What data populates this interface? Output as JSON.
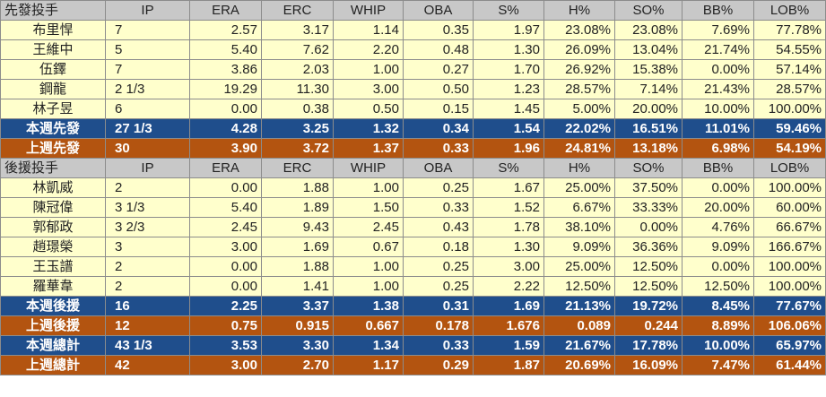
{
  "starters": {
    "header": [
      "先發投手",
      "IP",
      "ERA",
      "ERC",
      "WHIP",
      "OBA",
      "S%",
      "H%",
      "SO%",
      "BB%",
      "LOB%"
    ],
    "rows": [
      [
        "布里悍",
        "7",
        "2.57",
        "3.17",
        "1.14",
        "0.35",
        "1.97",
        "23.08%",
        "23.08%",
        "7.69%",
        "77.78%"
      ],
      [
        "王維中",
        "5",
        "5.40",
        "7.62",
        "2.20",
        "0.48",
        "1.30",
        "26.09%",
        "13.04%",
        "21.74%",
        "54.55%"
      ],
      [
        "伍鐸",
        "7",
        "3.86",
        "2.03",
        "1.00",
        "0.27",
        "1.70",
        "26.92%",
        "15.38%",
        "0.00%",
        "57.14%"
      ],
      [
        "鋼龍",
        "2 1/3",
        "19.29",
        "11.30",
        "3.00",
        "0.50",
        "1.23",
        "28.57%",
        "7.14%",
        "21.43%",
        "28.57%"
      ],
      [
        "林子昱",
        "6",
        "0.00",
        "0.38",
        "0.50",
        "0.15",
        "1.45",
        "5.00%",
        "20.00%",
        "10.00%",
        "100.00%"
      ]
    ],
    "this_week": [
      "本週先發",
      "27 1/3",
      "4.28",
      "3.25",
      "1.32",
      "0.34",
      "1.54",
      "22.02%",
      "16.51%",
      "11.01%",
      "59.46%"
    ],
    "last_week": [
      "上週先發",
      "30",
      "3.90",
      "3.72",
      "1.37",
      "0.33",
      "1.96",
      "24.81%",
      "13.18%",
      "6.98%",
      "54.19%"
    ]
  },
  "relievers": {
    "header": [
      "後援投手",
      "IP",
      "ERA",
      "ERC",
      "WHIP",
      "OBA",
      "S%",
      "H%",
      "SO%",
      "BB%",
      "LOB%"
    ],
    "rows": [
      [
        "林凱威",
        "2",
        "0.00",
        "1.88",
        "1.00",
        "0.25",
        "1.67",
        "25.00%",
        "37.50%",
        "0.00%",
        "100.00%"
      ],
      [
        "陳冠偉",
        "3 1/3",
        "5.40",
        "1.89",
        "1.50",
        "0.33",
        "1.52",
        "6.67%",
        "33.33%",
        "20.00%",
        "60.00%"
      ],
      [
        "郭郁政",
        "3 2/3",
        "2.45",
        "9.43",
        "2.45",
        "0.43",
        "1.78",
        "38.10%",
        "0.00%",
        "4.76%",
        "66.67%"
      ],
      [
        "趙璟榮",
        "3",
        "3.00",
        "1.69",
        "0.67",
        "0.18",
        "1.30",
        "9.09%",
        "36.36%",
        "9.09%",
        "166.67%"
      ],
      [
        "王玉譜",
        "2",
        "0.00",
        "1.88",
        "1.00",
        "0.25",
        "3.00",
        "25.00%",
        "12.50%",
        "0.00%",
        "100.00%"
      ],
      [
        "羅華韋",
        "2",
        "0.00",
        "1.41",
        "1.00",
        "0.25",
        "2.22",
        "12.50%",
        "12.50%",
        "12.50%",
        "100.00%"
      ]
    ],
    "this_week": [
      "本週後援",
      "16",
      "2.25",
      "3.37",
      "1.38",
      "0.31",
      "1.69",
      "21.13%",
      "19.72%",
      "8.45%",
      "77.67%"
    ],
    "last_week": [
      "上週後援",
      "12",
      "0.75",
      "0.915",
      "0.667",
      "0.178",
      "1.676",
      "0.089",
      "0.244",
      "8.89%",
      "106.06%"
    ]
  },
  "totals": {
    "this_week": [
      "本週總計",
      "43 1/3",
      "3.53",
      "3.30",
      "1.34",
      "0.33",
      "1.59",
      "21.67%",
      "17.78%",
      "10.00%",
      "65.97%"
    ],
    "last_week": [
      "上週總計",
      "42",
      "3.00",
      "2.70",
      "1.17",
      "0.29",
      "1.87",
      "20.69%",
      "16.09%",
      "7.47%",
      "61.44%"
    ]
  },
  "colors": {
    "header_bg": "#c8c8c8",
    "player_bg": "#ffffcc",
    "this_week_bg": "#1f4e8c",
    "last_week_bg": "#b35410"
  }
}
